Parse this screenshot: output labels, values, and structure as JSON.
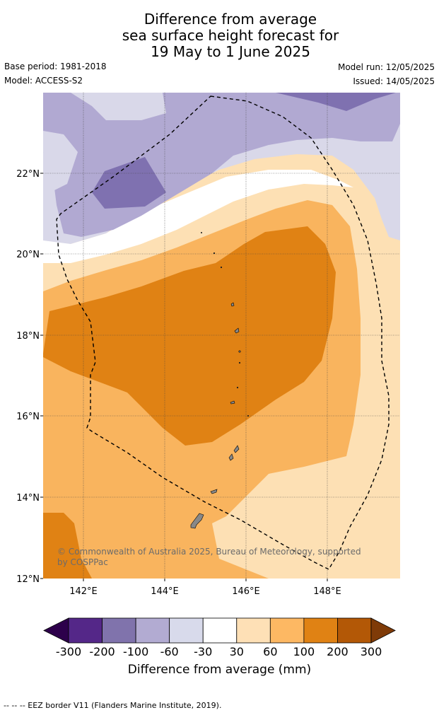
{
  "header": {
    "title_lines": [
      "Difference from average",
      "sea surface height forecast for",
      "19 May to 1 June 2025"
    ],
    "base_period": "Base period: 1981-2018",
    "model": "Model: ACCESS-S2",
    "model_run": "Model run: 12/05/2025",
    "issued": "Issued: 14/05/2025"
  },
  "map": {
    "lat_labels": [
      "22°N",
      "20°N",
      "18°N",
      "16°N",
      "14°N",
      "12°N"
    ],
    "lon_labels": [
      "142°E",
      "144°E",
      "146°E",
      "148°E"
    ],
    "copyright": [
      "© Commonwealth of Australia 2025, Bureau of Meteorology, supported",
      "by COSPPac"
    ],
    "colors": {
      "purple_dark": "#7f71b0",
      "purple_mid": "#b1a9d2",
      "purple_light": "#d9d8e9",
      "white": "#ffffff",
      "orange_light": "#fde0b4",
      "orange_mid": "#f9b45e",
      "orange_dark": "#e08214",
      "orange_deeper": "#b35806"
    }
  },
  "colorbar": {
    "labels": [
      "-300",
      "-200",
      "-100",
      "-60",
      "-30",
      "30",
      "60",
      "100",
      "200",
      "300"
    ],
    "colors": [
      "#2d004b",
      "#542788",
      "#8073ac",
      "#b2abd2",
      "#d8daeb",
      "#ffffff",
      "#fee0b6",
      "#fdb863",
      "#e08214",
      "#b35806",
      "#7f3b08"
    ],
    "title": "Difference from average (mm)"
  },
  "footer": {
    "text": "--  --  -- EEZ border V11 (Flanders Marine Institute, 2019)."
  }
}
